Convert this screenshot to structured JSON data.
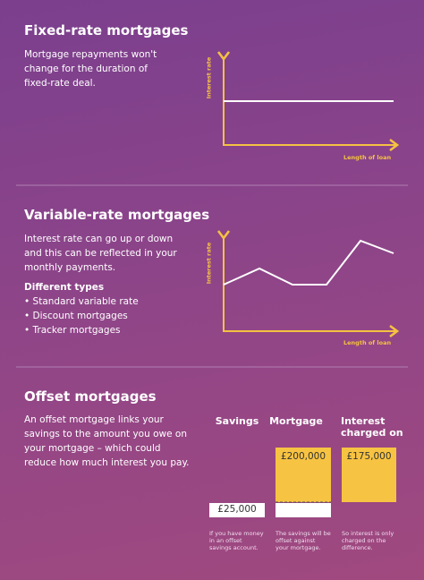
{
  "sections": [
    {
      "title": "Fixed-rate mortgages",
      "text": [
        "Mortgage repayments won't",
        "change for the duration of",
        "fixed-rate deal."
      ],
      "y_axis_label": "Interest rate",
      "x_axis_label": "Length of loan"
    },
    {
      "title": "Variable-rate mortgages",
      "text": [
        "Interest rate can go up or down",
        "and this can be reflected in your",
        "monthly payments."
      ],
      "types_heading": "Different types",
      "types": [
        "• Standard variable rate",
        "• Discount mortgages",
        "• Tracker mortgages"
      ],
      "y_axis_label": "Interest rate",
      "x_axis_label": "Length of loan"
    },
    {
      "title": "Offset mortgages",
      "text": [
        "An offset mortgage links your",
        "savings to the amount you owe on",
        "your mortgage – which could",
        "reduce how much interest you pay."
      ],
      "columns": [
        {
          "heading": [
            "Savings"
          ],
          "amount": "£25,000",
          "note": [
            "If you have money",
            "in an offset",
            "savings account."
          ]
        },
        {
          "heading": [
            "Mortgage"
          ],
          "amount": "£200,000",
          "note": [
            "The savings will be",
            "offset against",
            "your mortgage."
          ]
        },
        {
          "heading": [
            "Interest",
            "charged on"
          ],
          "amount": "£175,000",
          "note": [
            "So interest is only",
            "charged on the",
            "difference."
          ]
        }
      ]
    }
  ]
}
